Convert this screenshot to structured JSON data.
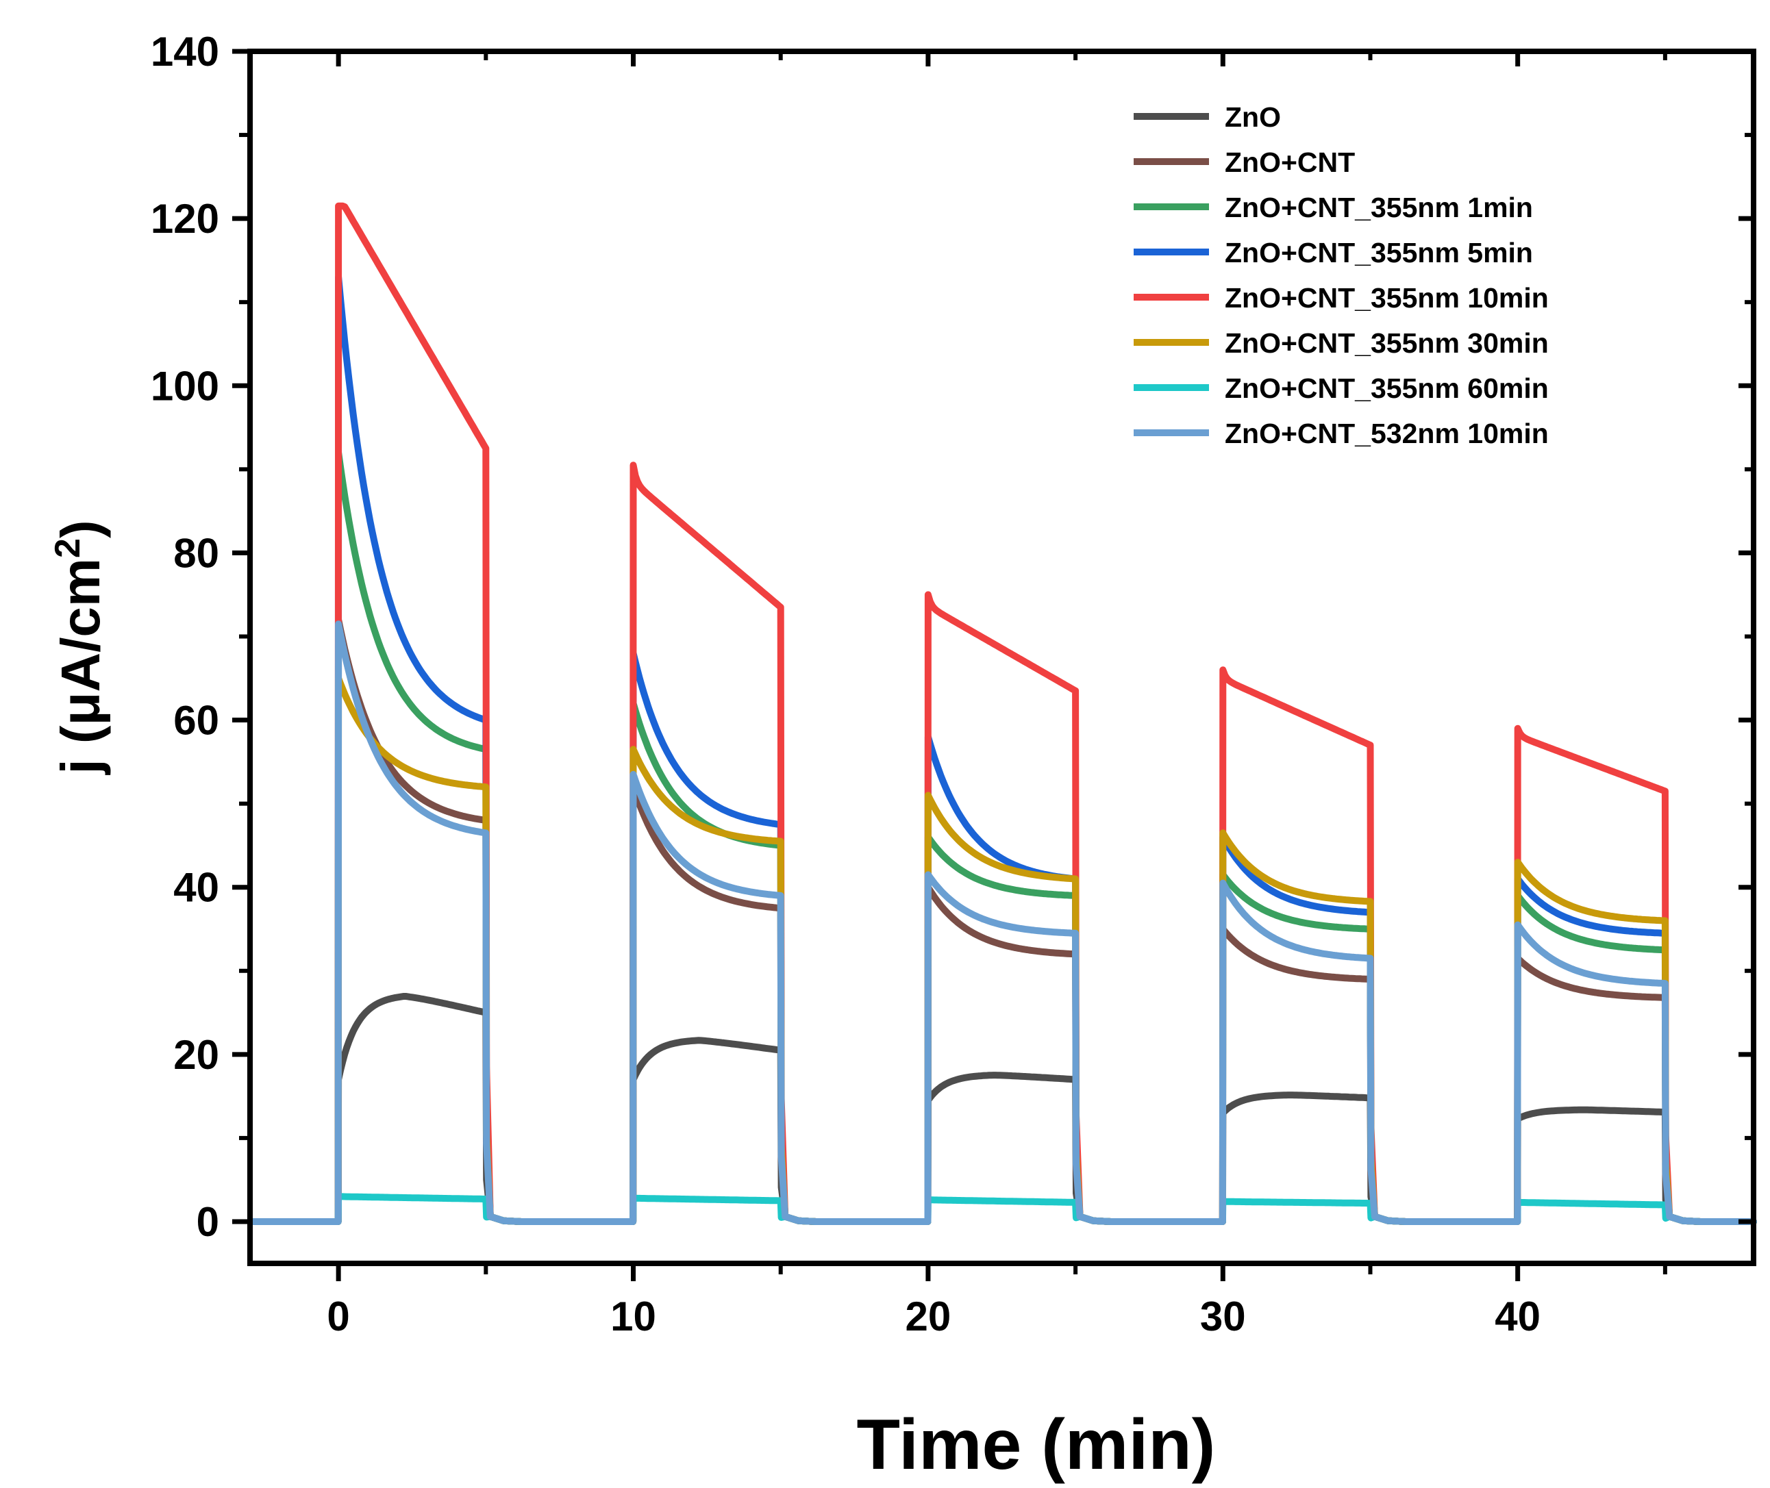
{
  "chart_data": {
    "type": "line",
    "title": "",
    "xlabel": "Time (min)",
    "ylabel_main": "j (μA/cm",
    "ylabel_sup": "2",
    "ylabel_end": ")",
    "xlim": [
      -3,
      48
    ],
    "ylim": [
      -5,
      140
    ],
    "xticks": [
      0,
      10,
      20,
      30,
      40
    ],
    "xtick_labels": [
      "0",
      "10",
      "20",
      "30",
      "40"
    ],
    "yticks": [
      0,
      20,
      40,
      60,
      80,
      100,
      120,
      140
    ],
    "ytick_labels": [
      "0",
      "20",
      "40",
      "60",
      "80",
      "100",
      "120",
      "140"
    ],
    "grid": false,
    "legend_position": "top-right",
    "on_intervals": [
      [
        0,
        5
      ],
      [
        10,
        15
      ],
      [
        20,
        25
      ],
      [
        30,
        35
      ],
      [
        40,
        45
      ]
    ],
    "series": [
      {
        "name": "ZnO",
        "color": "#4d4d4d",
        "peaks": [
          17,
          17,
          14.5,
          13,
          12.3
        ],
        "ends": [
          25,
          20.5,
          17,
          14.8,
          13.1
        ],
        "shape": "rise",
        "humps": [
          27.2,
          21.8,
          17.6,
          15.2,
          13.4
        ]
      },
      {
        "name": "ZnO+CNT",
        "color": "#7a4e47",
        "peaks": [
          72,
          52,
          40,
          35,
          31.5
        ],
        "ends": [
          48,
          37.5,
          32,
          29,
          26.8
        ],
        "shape": "decay"
      },
      {
        "name": "ZnO+CNT_355nm 1min",
        "color": "#3aa060",
        "peaks": [
          92,
          62,
          46,
          41.5,
          39
        ],
        "ends": [
          56.5,
          45,
          39,
          35,
          32.5
        ],
        "shape": "decay"
      },
      {
        "name": "ZnO+CNT_355nm 5min",
        "color": "#1a63d6",
        "peaks": [
          113,
          68,
          58,
          46,
          41
        ],
        "ends": [
          60,
          47.5,
          41,
          37,
          34.5
        ],
        "shape": "decay"
      },
      {
        "name": "ZnO+CNT_355nm 10min",
        "color": "#f04040",
        "peaks": [
          121.5,
          90.5,
          75,
          66,
          59
        ],
        "ends": [
          92.5,
          73.5,
          63.5,
          57,
          51.5
        ],
        "shape": "red"
      },
      {
        "name": "ZnO+CNT_355nm 30min",
        "color": "#c89a0a",
        "peaks": [
          65,
          56.5,
          51,
          46.5,
          43
        ],
        "ends": [
          52,
          45.5,
          41,
          38.3,
          36
        ],
        "shape": "decay"
      },
      {
        "name": "ZnO+CNT_355nm 60min",
        "color": "#1ec8c8",
        "peaks": [
          3,
          2.8,
          2.6,
          2.4,
          2.3
        ],
        "ends": [
          2.7,
          2.5,
          2.3,
          2.2,
          2.0
        ],
        "shape": "flat"
      },
      {
        "name": "ZnO+CNT_532nm 10min",
        "color": "#6a9fd2",
        "peaks": [
          71.5,
          53.5,
          41.5,
          40.5,
          35.5
        ],
        "ends": [
          46.5,
          39,
          34.5,
          31.5,
          28.5
        ],
        "shape": "decay"
      }
    ]
  }
}
